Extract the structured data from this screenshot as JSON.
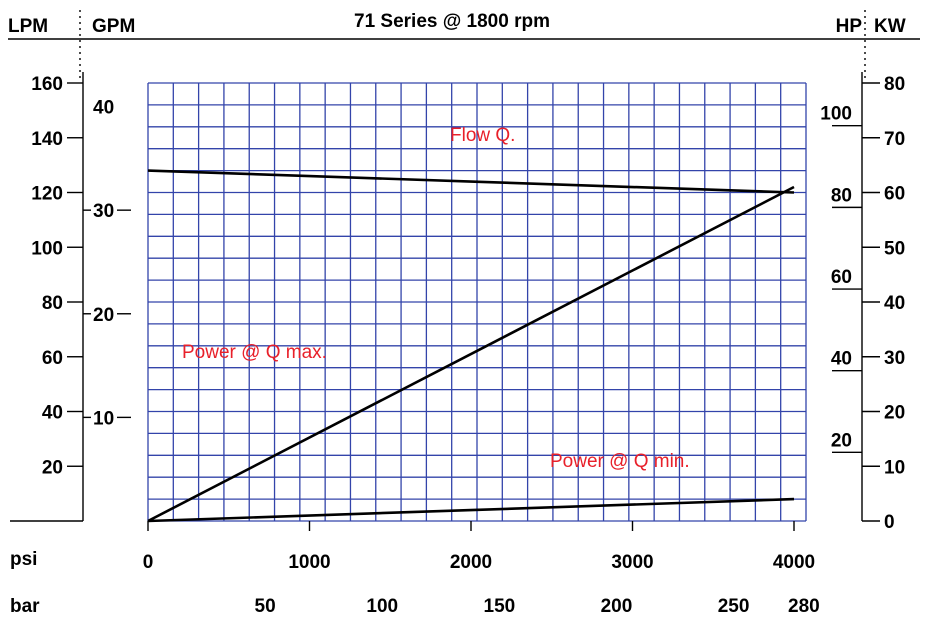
{
  "chart_data": {
    "type": "line",
    "title": "71 Series @ 1800 rpm",
    "header": {
      "left1": "LPM",
      "left2": "GPM",
      "right1": "HP",
      "right2": "KW"
    },
    "x_axis": {
      "unit": "psi",
      "range": [
        0,
        4000
      ],
      "ticks": [
        0,
        1000,
        2000,
        3000,
        4000
      ],
      "tick_labels": [
        "0",
        "1000",
        "2000",
        "3000",
        "4000"
      ]
    },
    "x2_axis": {
      "unit": "bar",
      "ticks": [
        50,
        100,
        150,
        200,
        250,
        280
      ],
      "tick_labels": [
        "50",
        "100",
        "150",
        "200",
        "250",
        "280"
      ]
    },
    "y_left_lpm": {
      "range": [
        0,
        160
      ],
      "ticks": [
        20,
        40,
        60,
        80,
        100,
        120,
        140,
        160
      ],
      "tick_labels": [
        "20",
        "40",
        "60",
        "80",
        "100",
        "120",
        "140",
        "160"
      ]
    },
    "y_left_gpm": {
      "ticks": [
        10,
        20,
        30,
        40
      ],
      "tick_labels": [
        "10",
        "20",
        "30",
        "40"
      ]
    },
    "y_right_hp": {
      "ticks": [
        20,
        40,
        60,
        80,
        100
      ],
      "tick_labels": [
        "20",
        "40",
        "60",
        "80",
        "100"
      ]
    },
    "y_right_kw": {
      "range": [
        0,
        80
      ],
      "ticks": [
        0,
        10,
        20,
        30,
        40,
        50,
        60,
        70,
        80
      ],
      "tick_labels": [
        "0",
        "10",
        "20",
        "30",
        "40",
        "50",
        "60",
        "70",
        "80"
      ]
    },
    "series": [
      {
        "name": "Flow Q.",
        "axis": "lpm",
        "x": [
          0,
          1000,
          2000,
          3000,
          4000
        ],
        "y": [
          128,
          126,
          124,
          122,
          120
        ]
      },
      {
        "name": "Power @ Q max.",
        "axis": "kw",
        "x": [
          0,
          4000
        ],
        "y": [
          0,
          61
        ]
      },
      {
        "name": "Power @ Q min.",
        "axis": "kw",
        "x": [
          0,
          4000
        ],
        "y": [
          0,
          4
        ]
      }
    ],
    "grid": true
  }
}
